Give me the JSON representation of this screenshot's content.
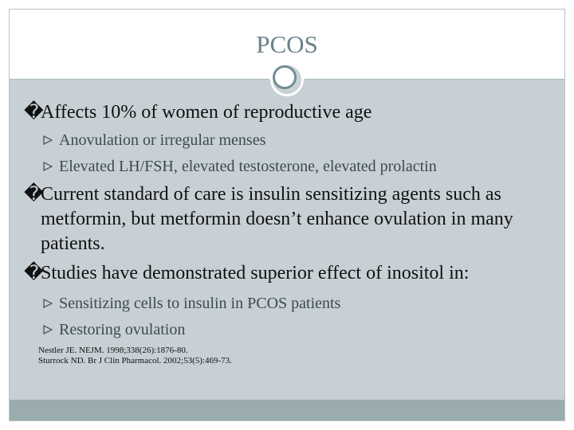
{
  "slide": {
    "title": "PCOS",
    "bullet_glyph": "�",
    "items": [
      {
        "text": "Affects 10% of women of reproductive age",
        "subitems": [
          "Anovulation or irregular menses",
          "Elevated LH/FSH, elevated testosterone, elevated prolactin"
        ]
      },
      {
        "text": "Current standard of care is insulin sensitizing agents such as metformin, but metformin doesn’t enhance ovulation in many patients.",
        "subitems": []
      },
      {
        "text": "Studies have demonstrated superior effect of inositol in:",
        "subitems": [
          "Sensitizing cells to insulin in PCOS patients",
          "Restoring ovulation"
        ]
      }
    ],
    "references": [
      "Nestler JE. NEJM. 1998;338(26):1876-80.",
      "Sturrock ND. Br J Clin Pharmacol. 2002;53(5):469-73."
    ],
    "colors": {
      "title": "#6b8189",
      "content_background": "#c7d0d4",
      "footer_bar": "#9aacad",
      "ornament": "#728d96"
    }
  }
}
